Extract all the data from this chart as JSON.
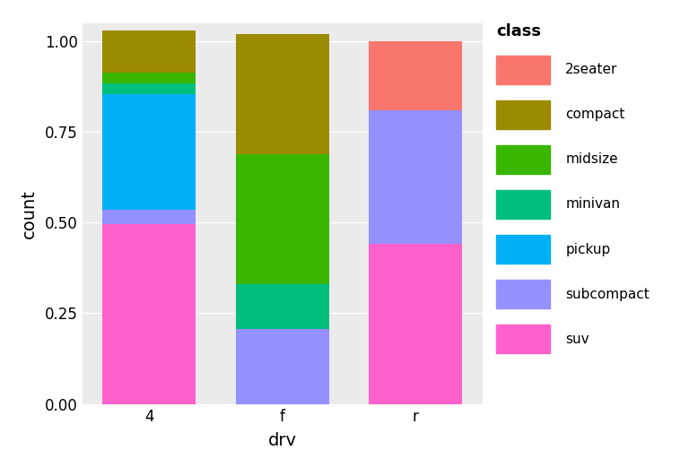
{
  "drv_labels": [
    "4",
    "f",
    "r"
  ],
  "classes": [
    "suv",
    "subcompact",
    "pickup",
    "minivan",
    "midsize",
    "compact",
    "2seater"
  ],
  "colors": {
    "suv": "#FF61CC",
    "subcompact": "#9590FF",
    "pickup": "#00B0F6",
    "minivan": "#00BF7D",
    "midsize": "#39B600",
    "compact": "#9B8B00",
    "2seater": "#F8766D"
  },
  "proportions": {
    "4": {
      "suv": 0.4951,
      "subcompact": 0.0388,
      "pickup": 0.3204,
      "minivan": 0.0291,
      "midsize": 0.0291,
      "compact": 0.1165,
      "2seater": 0.0
    },
    "f": {
      "suv": 0.0,
      "subcompact": 0.2075,
      "pickup": 0.0,
      "minivan": 0.1226,
      "midsize": 0.3585,
      "compact": 0.3302,
      "2seater": 0.0
    },
    "r": {
      "suv": 0.44,
      "subcompact": 0.37,
      "pickup": 0.0,
      "minivan": 0.0,
      "midsize": 0.0,
      "compact": 0.0,
      "2seater": 0.19
    }
  },
  "xlabel": "drv",
  "ylabel": "count",
  "legend_title": "class",
  "outer_background": "#FFFFFF",
  "panel_background": "#EBEBEB",
  "grid_color": "#FFFFFF",
  "bar_width": 0.7,
  "ylim": [
    0,
    1.05
  ],
  "yticks": [
    0.0,
    0.25,
    0.5,
    0.75,
    1.0
  ],
  "ytick_labels": [
    "0.00",
    "0.25",
    "0.50",
    "0.75",
    "1.00"
  ],
  "legend_order": [
    "2seater",
    "compact",
    "midsize",
    "minivan",
    "pickup",
    "subcompact",
    "suv"
  ]
}
